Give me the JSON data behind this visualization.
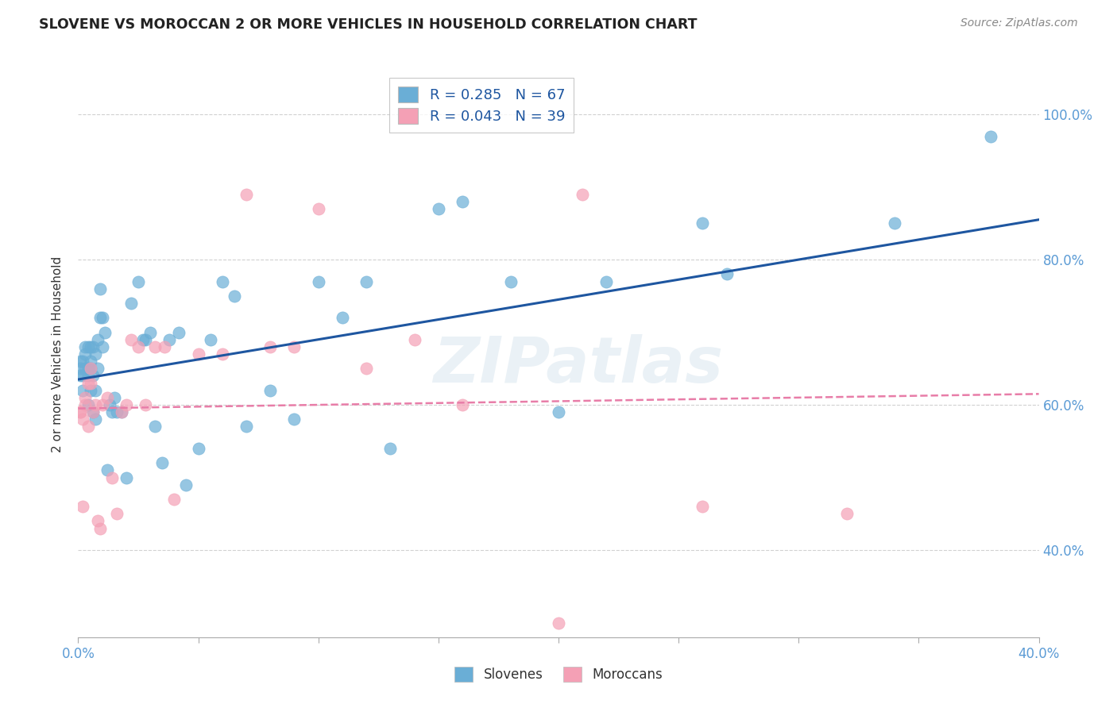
{
  "title": "SLOVENE VS MOROCCAN 2 OR MORE VEHICLES IN HOUSEHOLD CORRELATION CHART",
  "source": "Source: ZipAtlas.com",
  "xlabel_slovenes": "Slovenes",
  "xlabel_moroccans": "Moroccans",
  "ylabel": "2 or more Vehicles in Household",
  "watermark": "ZIPatlas",
  "slovene_R": 0.285,
  "slovene_N": 67,
  "moroccan_R": 0.043,
  "moroccan_N": 39,
  "slovene_color": "#6aaed6",
  "moroccan_color": "#f4a0b5",
  "slovene_line_color": "#1e56a0",
  "moroccan_line_color": "#e87da8",
  "background_color": "#ffffff",
  "xmin": 0.0,
  "xmax": 0.4,
  "ymin": 0.28,
  "ymax": 1.06,
  "x_ticks": [
    0.0,
    0.05,
    0.1,
    0.15,
    0.2,
    0.25,
    0.3,
    0.35,
    0.4
  ],
  "y_ticks": [
    0.4,
    0.6,
    0.8,
    1.0
  ],
  "slovene_x": [
    0.001,
    0.001,
    0.001,
    0.002,
    0.002,
    0.002,
    0.003,
    0.003,
    0.003,
    0.004,
    0.004,
    0.004,
    0.004,
    0.005,
    0.005,
    0.005,
    0.005,
    0.006,
    0.006,
    0.006,
    0.007,
    0.007,
    0.007,
    0.008,
    0.008,
    0.009,
    0.009,
    0.01,
    0.01,
    0.011,
    0.012,
    0.013,
    0.014,
    0.015,
    0.016,
    0.018,
    0.02,
    0.022,
    0.025,
    0.027,
    0.028,
    0.03,
    0.032,
    0.035,
    0.038,
    0.042,
    0.045,
    0.05,
    0.055,
    0.06,
    0.065,
    0.07,
    0.08,
    0.09,
    0.1,
    0.11,
    0.12,
    0.13,
    0.15,
    0.16,
    0.18,
    0.2,
    0.22,
    0.26,
    0.27,
    0.34,
    0.38
  ],
  "slovene_y": [
    0.64,
    0.65,
    0.66,
    0.62,
    0.64,
    0.66,
    0.65,
    0.67,
    0.68,
    0.6,
    0.64,
    0.65,
    0.68,
    0.62,
    0.65,
    0.66,
    0.68,
    0.59,
    0.64,
    0.68,
    0.58,
    0.62,
    0.67,
    0.65,
    0.69,
    0.72,
    0.76,
    0.68,
    0.72,
    0.7,
    0.51,
    0.6,
    0.59,
    0.61,
    0.59,
    0.59,
    0.5,
    0.74,
    0.77,
    0.69,
    0.69,
    0.7,
    0.57,
    0.52,
    0.69,
    0.7,
    0.49,
    0.54,
    0.69,
    0.77,
    0.75,
    0.57,
    0.62,
    0.58,
    0.77,
    0.72,
    0.77,
    0.54,
    0.87,
    0.88,
    0.77,
    0.59,
    0.77,
    0.85,
    0.78,
    0.85,
    0.97
  ],
  "moroccan_x": [
    0.001,
    0.001,
    0.002,
    0.002,
    0.003,
    0.003,
    0.004,
    0.004,
    0.005,
    0.005,
    0.006,
    0.007,
    0.008,
    0.009,
    0.01,
    0.012,
    0.014,
    0.016,
    0.018,
    0.02,
    0.022,
    0.025,
    0.028,
    0.032,
    0.036,
    0.04,
    0.05,
    0.06,
    0.07,
    0.08,
    0.09,
    0.1,
    0.12,
    0.14,
    0.16,
    0.2,
    0.21,
    0.26,
    0.32
  ],
  "moroccan_y": [
    0.59,
    0.59,
    0.58,
    0.46,
    0.61,
    0.6,
    0.57,
    0.63,
    0.65,
    0.63,
    0.59,
    0.6,
    0.44,
    0.43,
    0.6,
    0.61,
    0.5,
    0.45,
    0.59,
    0.6,
    0.69,
    0.68,
    0.6,
    0.68,
    0.68,
    0.47,
    0.67,
    0.67,
    0.89,
    0.68,
    0.68,
    0.87,
    0.65,
    0.69,
    0.6,
    0.3,
    0.89,
    0.46,
    0.45
  ],
  "slovene_line_x0": 0.0,
  "slovene_line_x1": 0.4,
  "slovene_line_y0": 0.635,
  "slovene_line_y1": 0.855,
  "moroccan_line_x0": 0.0,
  "moroccan_line_x1": 0.4,
  "moroccan_line_y0": 0.595,
  "moroccan_line_y1": 0.615
}
